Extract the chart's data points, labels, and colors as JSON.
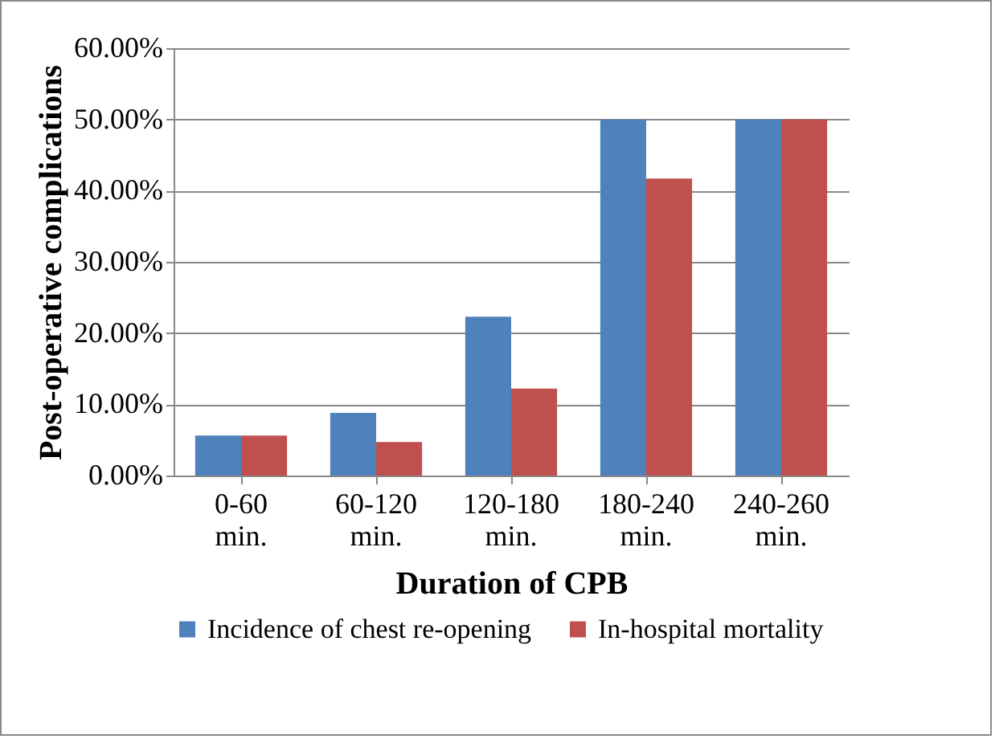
{
  "chart_data": {
    "type": "bar",
    "xlabel": "Duration of CPB",
    "ylabel": "Post-operative complications",
    "categories": [
      "0-60 min.",
      "60-120 min.",
      "120-180 min.",
      "180-240 min.",
      "240-260 min."
    ],
    "series": [
      {
        "name": "Incidence of chest re-opening",
        "color": "#4f81bd",
        "values": [
          5.6,
          8.8,
          22.3,
          50,
          50
        ]
      },
      {
        "name": "In-hospital mortality",
        "color": "#c0504d",
        "values": [
          5.6,
          4.7,
          12.2,
          41.7,
          50
        ]
      }
    ],
    "ylim": [
      0,
      60
    ],
    "yticks": [
      {
        "value": 0,
        "label": "0.00%"
      },
      {
        "value": 10,
        "label": "10.00%"
      },
      {
        "value": 20,
        "label": "20.00%"
      },
      {
        "value": 30,
        "label": "30.00%"
      },
      {
        "value": 40,
        "label": "40.00%"
      },
      {
        "value": 50,
        "label": "50.00%"
      },
      {
        "value": 60,
        "label": "60.00%"
      }
    ],
    "grid": "y",
    "legend": "bottom"
  }
}
